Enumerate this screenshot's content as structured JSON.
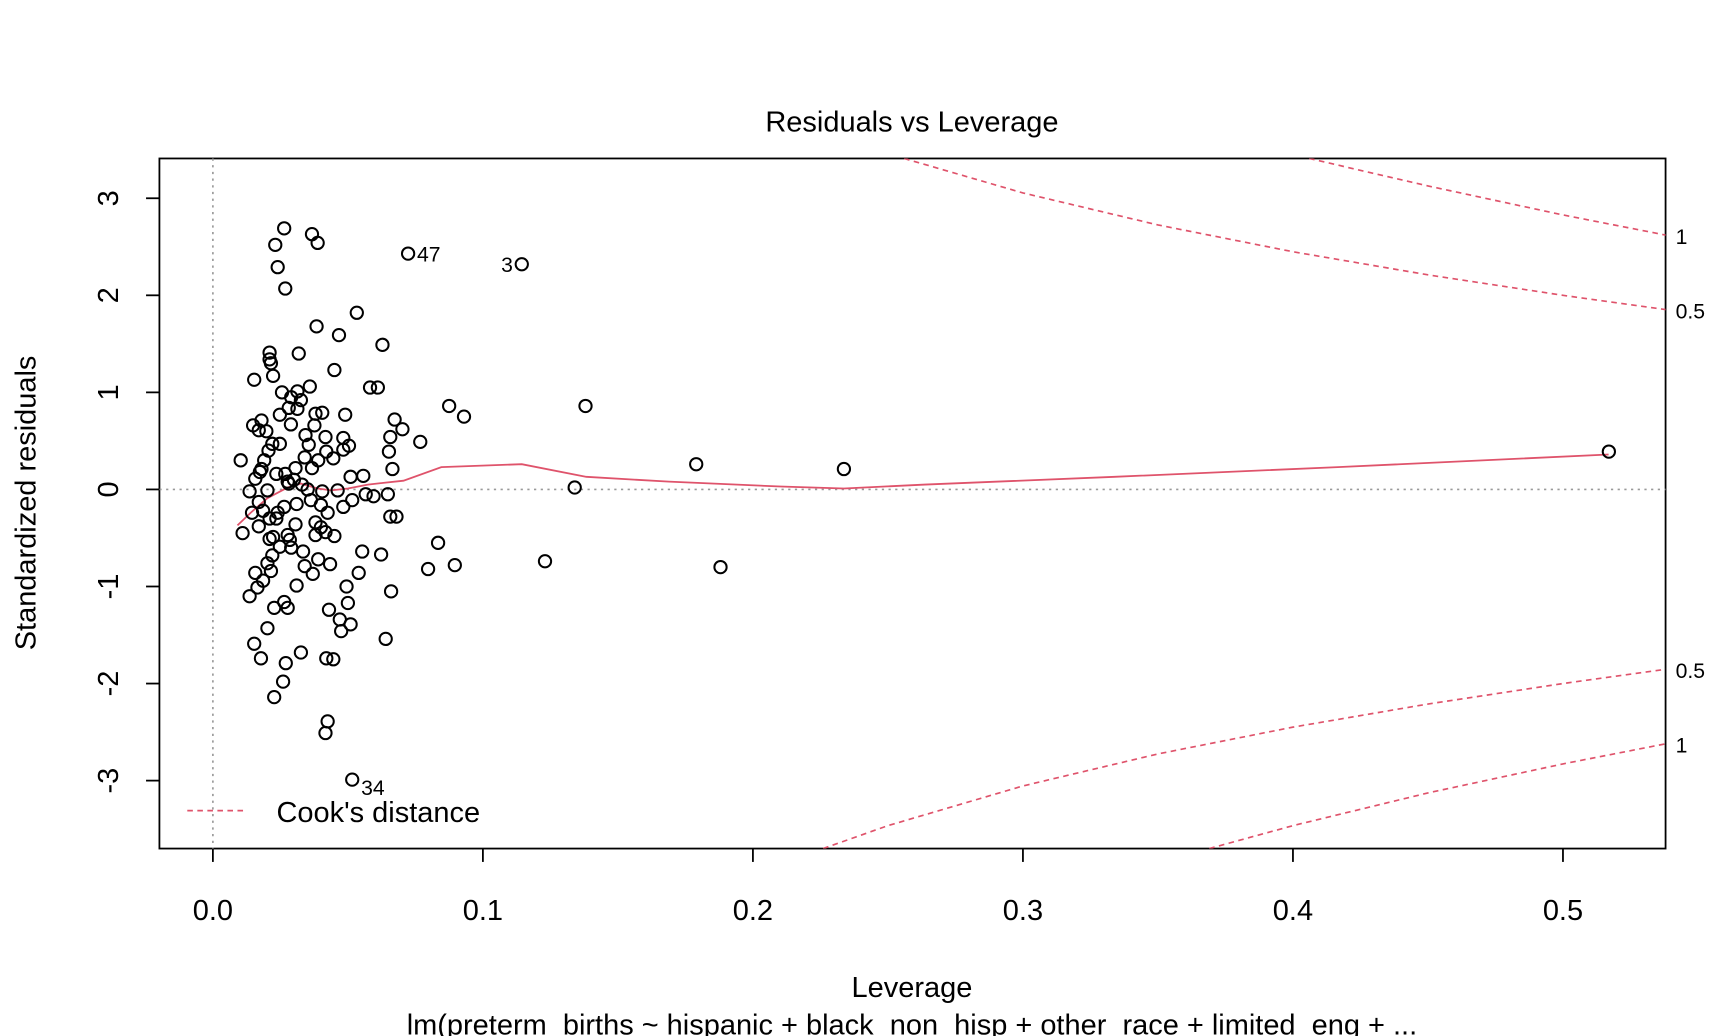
{
  "chart_data": {
    "type": "scatter",
    "title": "Residuals vs Leverage",
    "xlabel": "Leverage",
    "subtitle": "lm(preterm_births ~ hispanic + black_non_hisp + other_race + limited_eng +  ...",
    "ylabel": "Standardized residuals",
    "xlim": [
      -0.0198,
      0.538
    ],
    "ylim": [
      -3.7,
      3.41
    ],
    "xticks": [
      {
        "value": 0,
        "label": "0.0"
      },
      0.1,
      0.2,
      0.3,
      0.4,
      0.5
    ],
    "yticks": [
      -3,
      -2,
      -1,
      0,
      1,
      2,
      3
    ],
    "hline": 0,
    "vline": 0,
    "points": {
      "color": "#000000",
      "x": [
        0.0723,
        0.1144,
        0.0516,
        0.517,
        0.2337,
        0.179,
        0.188,
        0.138,
        0.134,
        0.123,
        0.093,
        0.0875,
        0.0896,
        0.0797,
        0.0834,
        0.0768,
        0.0702,
        0.0673,
        0.0657,
        0.0652,
        0.0665,
        0.0628,
        0.0611,
        0.0582,
        0.0533,
        0.0467,
        0.045,
        0.0384,
        0.0388,
        0.0367,
        0.0264,
        0.0231,
        0.024,
        0.0268,
        0.0648,
        0.0657,
        0.068,
        0.066,
        0.0623,
        0.064,
        0.0553,
        0.054,
        0.0495,
        0.05,
        0.051,
        0.047,
        0.0475,
        0.043,
        0.0446,
        0.042,
        0.0425,
        0.0417,
        0.0326,
        0.027,
        0.026,
        0.0227,
        0.0178,
        0.0153,
        0.0202,
        0.0227,
        0.0264,
        0.0277,
        0.031,
        0.0136,
        0.0165,
        0.0186,
        0.0157,
        0.0202,
        0.0215,
        0.022,
        0.0248,
        0.0285,
        0.029,
        0.034,
        0.037,
        0.039,
        0.0434,
        0.045,
        0.0417,
        0.038,
        0.0334,
        0.0306,
        0.0235,
        0.021,
        0.0186,
        0.017,
        0.0136,
        0.011,
        0.0103,
        0.0157,
        0.018,
        0.019,
        0.0206,
        0.022,
        0.0248,
        0.0235,
        0.0277,
        0.03,
        0.0306,
        0.034,
        0.0367,
        0.039,
        0.042,
        0.0446,
        0.0462,
        0.0483,
        0.0516,
        0.0566,
        0.0595,
        0.0557,
        0.051,
        0.0483,
        0.0483,
        0.0504,
        0.049,
        0.0417,
        0.0355,
        0.0343,
        0.0376,
        0.038,
        0.0405,
        0.0359,
        0.0313,
        0.0326,
        0.029,
        0.0281,
        0.0313,
        0.0256,
        0.0289,
        0.0248,
        0.0198,
        0.017,
        0.0149,
        0.018,
        0.0153,
        0.0223,
        0.0215,
        0.021,
        0.0318,
        0.021,
        0.0351,
        0.0405,
        0.04,
        0.031,
        0.0264,
        0.024,
        0.04,
        0.038,
        0.0277,
        0.021,
        0.0223,
        0.017,
        0.0145,
        0.0202,
        0.0363,
        0.0425,
        0.033,
        0.0268,
        0.0281,
        0.0174
      ],
      "y": [
        2.43,
        2.32,
        -2.99,
        0.39,
        0.21,
        0.26,
        -0.8,
        0.86,
        0.02,
        -0.74,
        0.75,
        0.86,
        -0.78,
        -0.82,
        -0.55,
        0.49,
        0.62,
        0.72,
        0.54,
        0.39,
        0.21,
        1.49,
        1.05,
        1.05,
        1.82,
        1.59,
        1.23,
        1.68,
        2.54,
        2.63,
        2.69,
        2.52,
        2.29,
        2.07,
        -0.05,
        -0.28,
        -0.28,
        -1.05,
        -0.67,
        -1.54,
        -0.64,
        -0.86,
        -1.0,
        -1.17,
        -1.39,
        -1.34,
        -1.46,
        -1.24,
        -1.75,
        -1.74,
        -2.39,
        -2.51,
        -1.68,
        -1.79,
        -1.98,
        -2.14,
        -1.74,
        -1.59,
        -1.43,
        -1.22,
        -1.16,
        -1.22,
        -0.99,
        -1.1,
        -1.01,
        -0.94,
        -0.86,
        -0.76,
        -0.84,
        -0.68,
        -0.59,
        -0.52,
        -0.6,
        -0.79,
        -0.87,
        -0.72,
        -0.77,
        -0.48,
        -0.44,
        -0.34,
        -0.64,
        -0.36,
        -0.3,
        -0.3,
        -0.22,
        -0.13,
        -0.02,
        -0.45,
        0.3,
        0.11,
        0.21,
        0.3,
        0.4,
        0.47,
        0.47,
        0.16,
        0.08,
        0.1,
        0.22,
        0.33,
        0.22,
        0.3,
        0.39,
        0.32,
        -0.01,
        -0.18,
        -0.11,
        -0.05,
        -0.07,
        0.14,
        0.13,
        0.41,
        0.53,
        0.45,
        0.77,
        0.54,
        0.46,
        0.56,
        0.66,
        0.78,
        0.79,
        1.06,
        0.83,
        0.92,
        0.95,
        0.84,
        1.01,
        1.0,
        0.67,
        0.77,
        0.6,
        0.61,
        0.66,
        0.71,
        1.13,
        1.17,
        1.3,
        1.41,
        1.4,
        1.34,
        0.0,
        -0.02,
        -0.16,
        -0.15,
        -0.18,
        -0.24,
        -0.39,
        -0.47,
        -0.47,
        -0.51,
        -0.49,
        -0.38,
        -0.24,
        -0.01,
        -0.11,
        -0.24,
        0.05,
        0.16,
        0.06,
        0.18
      ]
    },
    "annotations": [
      {
        "text": "47",
        "x": 0.0723,
        "y": 2.43
      },
      {
        "text": "3",
        "x": 0.1144,
        "y": 2.32
      },
      {
        "text": "34",
        "x": 0.0516,
        "y": -2.99
      }
    ],
    "smooth": {
      "color": "#DF536B",
      "x": [
        0.0091,
        0.014,
        0.0202,
        0.0277,
        0.0326,
        0.0388,
        0.0438,
        0.05,
        0.0574,
        0.0706,
        0.0846,
        0.1144,
        0.1383,
        0.1689,
        0.2102,
        0.2337,
        0.2638,
        0.334,
        0.4166,
        0.5169
      ],
      "y": [
        -0.37,
        -0.24,
        -0.09,
        0.02,
        0.06,
        0.01,
        -0.01,
        0.01,
        0.05,
        0.09,
        0.23,
        0.26,
        0.13,
        0.08,
        0.03,
        0.01,
        0.05,
        0.13,
        0.23,
        0.36
      ]
    },
    "cooks": {
      "name": "Cook's distance",
      "color": "#DF536B",
      "lines": [
        {
          "level": 1,
          "x": [
            0.406,
            0.45,
            0.5,
            0.538
          ],
          "y": [
            3.41,
            3.127,
            2.828,
            2.621
          ]
        },
        {
          "level": 0.5,
          "x": [
            0.256,
            0.3,
            0.35,
            0.4,
            0.45,
            0.5,
            0.538
          ],
          "y": [
            3.41,
            3.055,
            2.725,
            2.449,
            2.211,
            2.0,
            1.853
          ]
        },
        {
          "level": 0.5,
          "x": [
            0.226,
            0.25,
            0.3,
            0.35,
            0.4,
            0.45,
            0.5,
            0.538
          ],
          "y": [
            -3.7,
            -3.464,
            -3.055,
            -2.725,
            -2.449,
            -2.211,
            -2.0,
            -1.853
          ]
        },
        {
          "level": 1,
          "x": [
            0.369,
            0.4,
            0.45,
            0.5,
            0.538
          ],
          "y": [
            -3.7,
            -3.464,
            -3.127,
            -2.828,
            -2.621
          ]
        }
      ]
    }
  }
}
